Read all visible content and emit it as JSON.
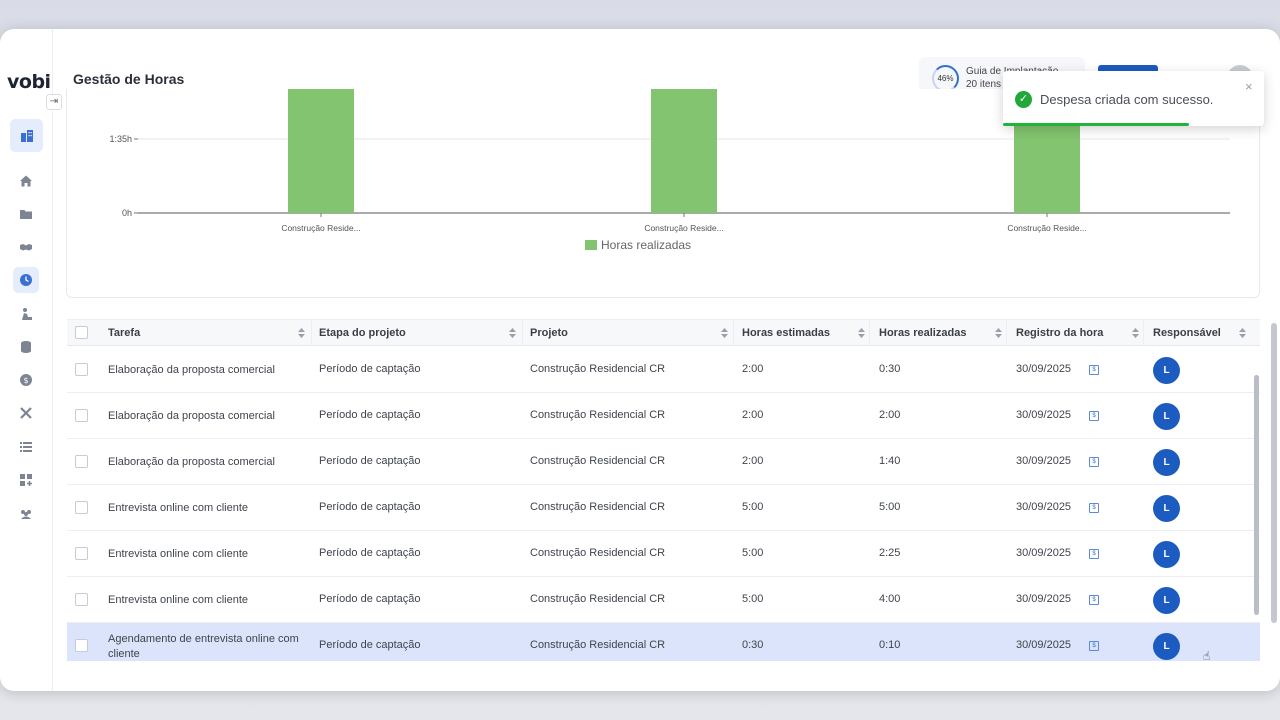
{
  "app": {
    "logo": "vobi",
    "page_title": "Gestão de Horas"
  },
  "guide": {
    "percent": "46%",
    "title": "Guia de Implantação",
    "subtitle": "20 itens"
  },
  "toast": {
    "message": "Despesa criada com sucesso.",
    "close": "×",
    "check": "✓"
  },
  "sidebar": {
    "items": [
      {
        "icon": "building-icon"
      },
      {
        "icon": "home-icon"
      },
      {
        "icon": "folder-icon"
      },
      {
        "icon": "handshake-icon"
      },
      {
        "icon": "clock-icon"
      },
      {
        "icon": "worker-icon"
      },
      {
        "icon": "database-icon"
      },
      {
        "icon": "dollar-icon"
      },
      {
        "icon": "tools-icon"
      },
      {
        "icon": "list-icon"
      },
      {
        "icon": "apps-add-icon"
      },
      {
        "icon": "team-icon"
      }
    ]
  },
  "chart_data": {
    "type": "bar",
    "categories": [
      "Construção Reside...",
      "Construção Reside...",
      "Construção Reside..."
    ],
    "series": [
      {
        "name": "Horas realizadas",
        "color": "#82c46f",
        "values": [
          null,
          null,
          null
        ]
      }
    ],
    "yticks": [
      "0h",
      "1:35h"
    ],
    "legend_placement": "bottom-center",
    "grid": true
  },
  "table": {
    "columns": [
      "Tarefa",
      "Etapa do projeto",
      "Projeto",
      "Horas estimadas",
      "Horas realizadas",
      "Registro da hora",
      "Responsável"
    ],
    "rows": [
      {
        "tarefa": "Elaboração da proposta comercial",
        "etapa": "Período de captação",
        "projeto": "Construção Residencial CR",
        "estimadas": "2:00",
        "realizadas": "0:30",
        "registro": "30/09/2025",
        "resp": "L"
      },
      {
        "tarefa": "Elaboração da proposta comercial",
        "etapa": "Período de captação",
        "projeto": "Construção Residencial CR",
        "estimadas": "2:00",
        "realizadas": "2:00",
        "registro": "30/09/2025",
        "resp": "L"
      },
      {
        "tarefa": "Elaboração da proposta comercial",
        "etapa": "Período de captação",
        "projeto": "Construção Residencial CR",
        "estimadas": "2:00",
        "realizadas": "1:40",
        "registro": "30/09/2025",
        "resp": "L"
      },
      {
        "tarefa": "Entrevista online com cliente",
        "etapa": "Período de captação",
        "projeto": "Construção Residencial CR",
        "estimadas": "5:00",
        "realizadas": "5:00",
        "registro": "30/09/2025",
        "resp": "L"
      },
      {
        "tarefa": "Entrevista online com cliente",
        "etapa": "Período de captação",
        "projeto": "Construção Residencial CR",
        "estimadas": "5:00",
        "realizadas": "2:25",
        "registro": "30/09/2025",
        "resp": "L"
      },
      {
        "tarefa": "Entrevista online com cliente",
        "etapa": "Período de captação",
        "projeto": "Construção Residencial CR",
        "estimadas": "5:00",
        "realizadas": "4:00",
        "registro": "30/09/2025",
        "resp": "L"
      },
      {
        "tarefa": "Agendamento de entrevista online com cliente",
        "etapa": "Período de captação",
        "projeto": "Construção Residencial CR",
        "estimadas": "0:30",
        "realizadas": "0:10",
        "registro": "30/09/2025",
        "resp": "L",
        "highlighted": true
      }
    ]
  }
}
